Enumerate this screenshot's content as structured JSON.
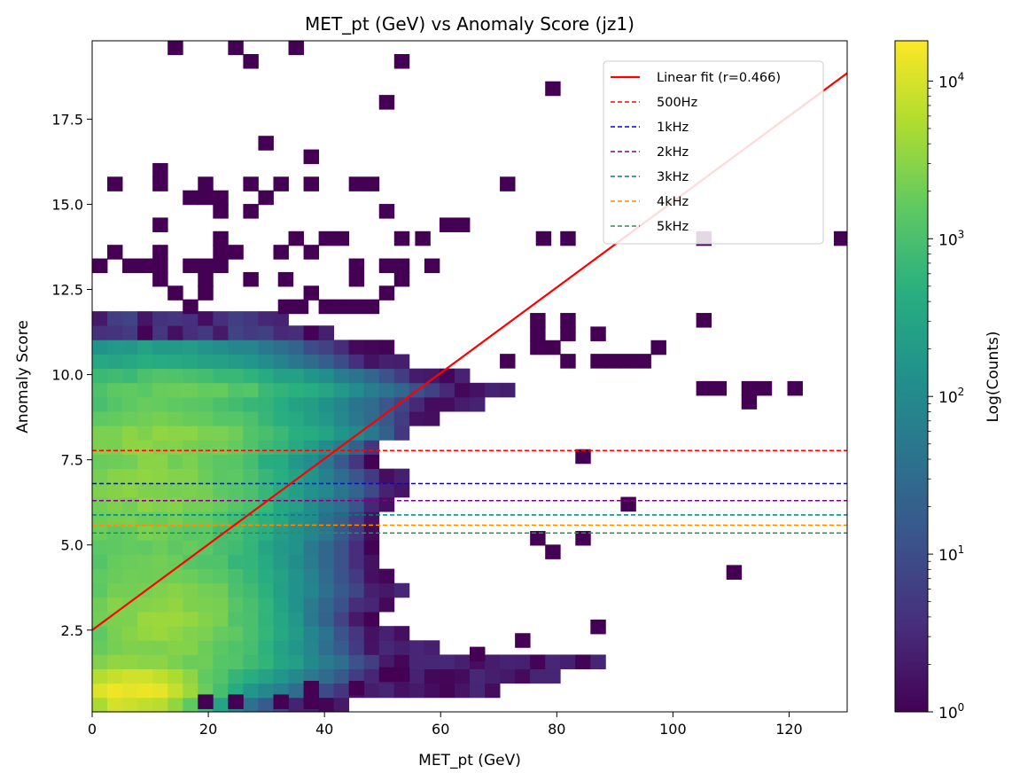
{
  "chart_data": {
    "type": "heatmap",
    "title": "MET_pt (GeV) vs Anomaly Score (jz1)",
    "xlabel": "MET_pt (GeV)",
    "ylabel": "Anomaly Score",
    "colorbar_label": "Log(Counts)",
    "xlim": [
      0,
      130
    ],
    "ylim": [
      0.1,
      19.8
    ],
    "xticks": [
      0,
      20,
      40,
      60,
      80,
      100,
      120
    ],
    "xtick_labels": [
      "0",
      "20",
      "40",
      "60",
      "80",
      "100",
      "120"
    ],
    "yticks": [
      2.5,
      5.0,
      7.5,
      10.0,
      12.5,
      15.0,
      17.5
    ],
    "ytick_labels": [
      "2.5",
      "5.0",
      "7.5",
      "10.0",
      "12.5",
      "15.0",
      "17.5"
    ],
    "colorbar_scale": "log",
    "colorbar_range": [
      1,
      18000
    ],
    "colorbar_ticks": [
      1,
      10,
      100,
      1000,
      10000
    ],
    "colorbar_tick_labels": [
      {
        "base": "10",
        "exp": "0"
      },
      {
        "base": "10",
        "exp": "1"
      },
      {
        "base": "10",
        "exp": "2"
      },
      {
        "base": "10",
        "exp": "3"
      },
      {
        "base": "10",
        "exp": "4"
      }
    ],
    "colormap": "viridis",
    "bins": {
      "x_width": 2.6,
      "y_width": 0.42
    },
    "fit_line": {
      "label": "Linear fit (r=0.466)",
      "color": "#ff0000",
      "x": [
        0,
        130
      ],
      "y": [
        2.5,
        18.85
      ]
    },
    "thresholds": [
      {
        "label": "500Hz",
        "y": 7.77,
        "color": "#ff0000"
      },
      {
        "label": "1kHz",
        "y": 6.8,
        "color": "#0000ff"
      },
      {
        "label": "2kHz",
        "y": 6.3,
        "color": "#800080"
      },
      {
        "label": "3kHz",
        "y": 5.88,
        "color": "#008080"
      },
      {
        "label": "4kHz",
        "y": 5.58,
        "color": "#ff8c00"
      },
      {
        "label": "5kHz",
        "y": 5.35,
        "color": "#2e8b57"
      }
    ],
    "legend_position": "top-right",
    "grid": false,
    "isolated_bins": [
      [
        14.3,
        19.6
      ],
      [
        24.7,
        19.6
      ],
      [
        35.1,
        19.6
      ],
      [
        27.3,
        19.2
      ],
      [
        53.3,
        19.2
      ],
      [
        79.3,
        18.4
      ],
      [
        50.7,
        18.0
      ],
      [
        29.9,
        16.8
      ],
      [
        37.7,
        16.4
      ],
      [
        11.7,
        16.0
      ],
      [
        11.7,
        15.6
      ],
      [
        3.9,
        15.6
      ],
      [
        19.5,
        15.6
      ],
      [
        27.3,
        15.6
      ],
      [
        32.5,
        15.6
      ],
      [
        37.7,
        15.6
      ],
      [
        45.5,
        15.6
      ],
      [
        48.1,
        15.6
      ],
      [
        71.5,
        15.6
      ],
      [
        16.9,
        15.2
      ],
      [
        19.5,
        15.2
      ],
      [
        22.1,
        15.2
      ],
      [
        29.9,
        15.2
      ],
      [
        22.1,
        14.8
      ],
      [
        27.3,
        14.8
      ],
      [
        50.7,
        14.8
      ],
      [
        11.7,
        14.4
      ],
      [
        61.1,
        14.4
      ],
      [
        63.7,
        14.4
      ],
      [
        22.1,
        14.0
      ],
      [
        35.1,
        14.0
      ],
      [
        40.3,
        14.0
      ],
      [
        42.9,
        14.0
      ],
      [
        53.3,
        14.0
      ],
      [
        56.9,
        14.0
      ],
      [
        77.7,
        14.0
      ],
      [
        81.9,
        14.0
      ],
      [
        105.3,
        14.0
      ],
      [
        129.0,
        14.0
      ],
      [
        3.9,
        13.6
      ],
      [
        11.7,
        13.6
      ],
      [
        22.1,
        13.6
      ],
      [
        24.7,
        13.6
      ],
      [
        32.5,
        13.6
      ],
      [
        37.7,
        13.6
      ],
      [
        1.3,
        13.2
      ],
      [
        6.5,
        13.2
      ],
      [
        9.1,
        13.2
      ],
      [
        11.7,
        13.2
      ],
      [
        16.9,
        13.2
      ],
      [
        19.5,
        13.2
      ],
      [
        22.1,
        13.2
      ],
      [
        45.5,
        13.2
      ],
      [
        50.7,
        13.2
      ],
      [
        53.3,
        13.2
      ],
      [
        58.5,
        13.2
      ],
      [
        11.7,
        12.8
      ],
      [
        19.5,
        12.8
      ],
      [
        27.3,
        12.8
      ],
      [
        33.3,
        12.8
      ],
      [
        45.5,
        12.8
      ],
      [
        53.3,
        12.8
      ],
      [
        14.3,
        12.4
      ],
      [
        19.5,
        12.4
      ],
      [
        37.7,
        12.4
      ],
      [
        50.7,
        12.4
      ],
      [
        16.9,
        12.0
      ],
      [
        33.3,
        12.0
      ],
      [
        35.9,
        12.0
      ],
      [
        40.3,
        12.0
      ],
      [
        42.9,
        12.0
      ],
      [
        45.5,
        12.0
      ],
      [
        48.1,
        12.0
      ],
      [
        76.7,
        11.6
      ],
      [
        81.9,
        11.6
      ],
      [
        105.3,
        11.6
      ],
      [
        76.7,
        11.2
      ],
      [
        81.9,
        11.2
      ],
      [
        87.1,
        11.2
      ],
      [
        76.7,
        10.8
      ],
      [
        79.3,
        10.8
      ],
      [
        97.5,
        10.8
      ],
      [
        71.5,
        10.4
      ],
      [
        81.9,
        10.4
      ],
      [
        87.1,
        10.4
      ],
      [
        89.7,
        10.4
      ],
      [
        92.3,
        10.4
      ],
      [
        94.9,
        10.4
      ],
      [
        105.3,
        9.6
      ],
      [
        107.9,
        9.6
      ],
      [
        113.1,
        9.6
      ],
      [
        115.7,
        9.6
      ],
      [
        121.0,
        9.6
      ],
      [
        113.1,
        9.2
      ],
      [
        84.5,
        7.6
      ],
      [
        92.3,
        6.2
      ],
      [
        76.7,
        5.2
      ],
      [
        84.5,
        5.2
      ],
      [
        79.3,
        4.8
      ],
      [
        110.5,
        4.2
      ],
      [
        87.1,
        2.6
      ],
      [
        74.1,
        2.2
      ],
      [
        66.3,
        1.8
      ],
      [
        19.5,
        0.4
      ],
      [
        24.7,
        0.4
      ],
      [
        32.5,
        0.4
      ],
      [
        37.7,
        0.4
      ],
      [
        37.7,
        0.8
      ],
      [
        45.5,
        0.8
      ],
      [
        50.7,
        1.2
      ],
      [
        53.3,
        1.2
      ]
    ]
  }
}
